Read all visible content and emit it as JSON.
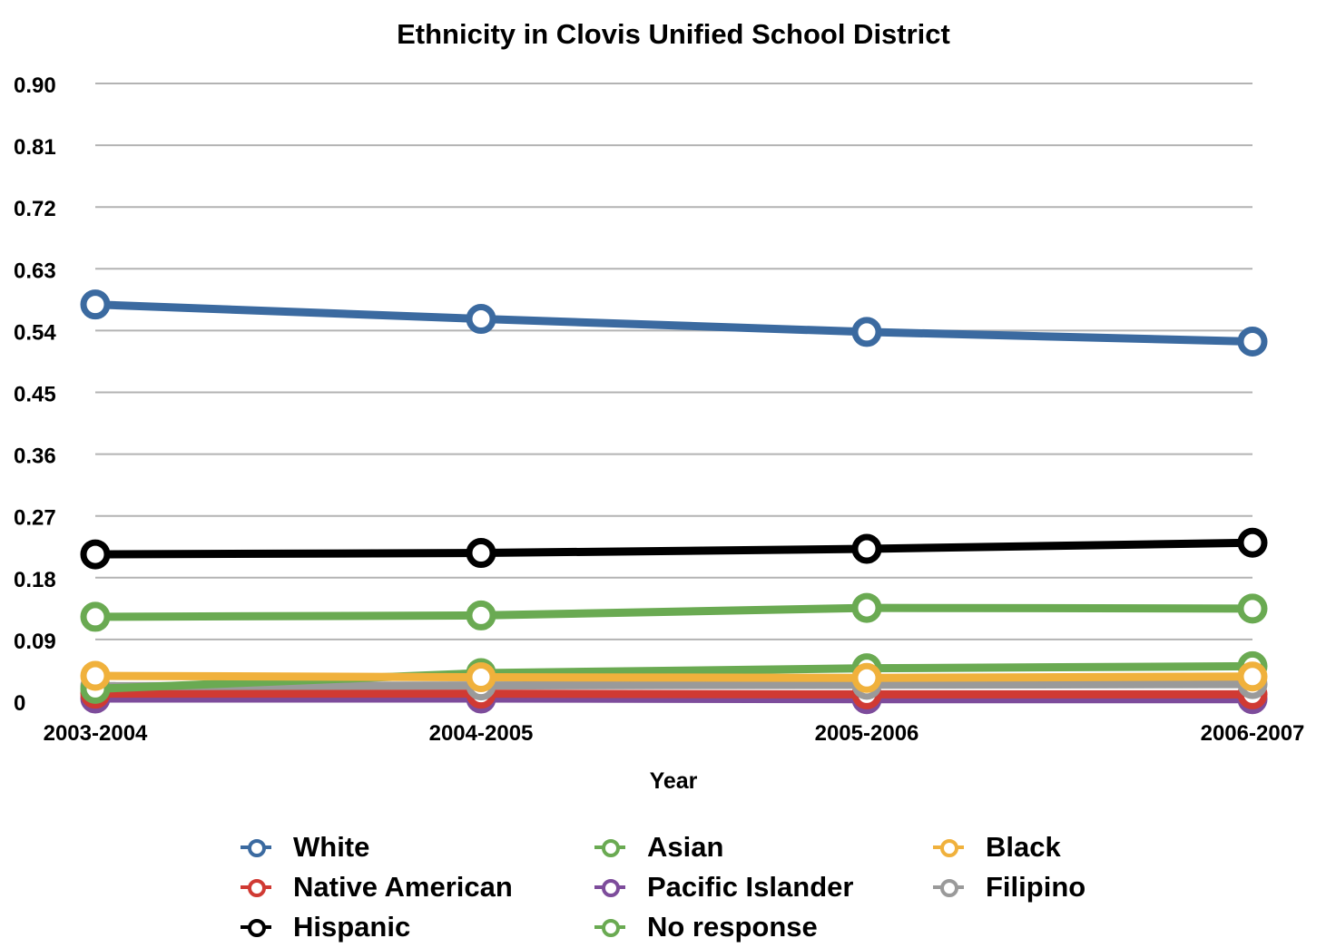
{
  "chart_data": {
    "type": "line",
    "title": "Ethnicity in Clovis Unified School District",
    "xlabel": "Year",
    "ylabel": "",
    "categories": [
      "2003-2004",
      "2004-2005",
      "2005-2006",
      "2006-2007"
    ],
    "ylim": [
      0,
      0.9
    ],
    "yticks": [
      "0",
      "0.09",
      "0.18",
      "0.27",
      "0.36",
      "0.45",
      "0.54",
      "0.63",
      "0.72",
      "0.81",
      "0.90"
    ],
    "grid": true,
    "legend_position": "bottom",
    "series": [
      {
        "name": "White",
        "color": "#3b6aa0",
        "values": [
          0.578,
          0.557,
          0.538,
          0.524
        ]
      },
      {
        "name": "Asian",
        "color": "#6aaa52",
        "values": [
          0.123,
          0.125,
          0.136,
          0.135
        ]
      },
      {
        "name": "Black",
        "color": "#f0b13c",
        "values": [
          0.037,
          0.035,
          0.034,
          0.036
        ]
      },
      {
        "name": "Native American",
        "color": "#d03a33",
        "values": [
          0.011,
          0.011,
          0.01,
          0.01
        ]
      },
      {
        "name": "Pacific Islander",
        "color": "#7d4c9b",
        "values": [
          0.004,
          0.004,
          0.003,
          0.003
        ]
      },
      {
        "name": "Filipino",
        "color": "#9a9a9a",
        "values": [
          0.022,
          0.023,
          0.024,
          0.025
        ]
      },
      {
        "name": "Hispanic",
        "color": "#000000",
        "values": [
          0.214,
          0.216,
          0.222,
          0.231
        ]
      },
      {
        "name": "No response",
        "color": "#6aaa52",
        "values": [
          0.018,
          0.041,
          0.048,
          0.051
        ]
      }
    ]
  }
}
